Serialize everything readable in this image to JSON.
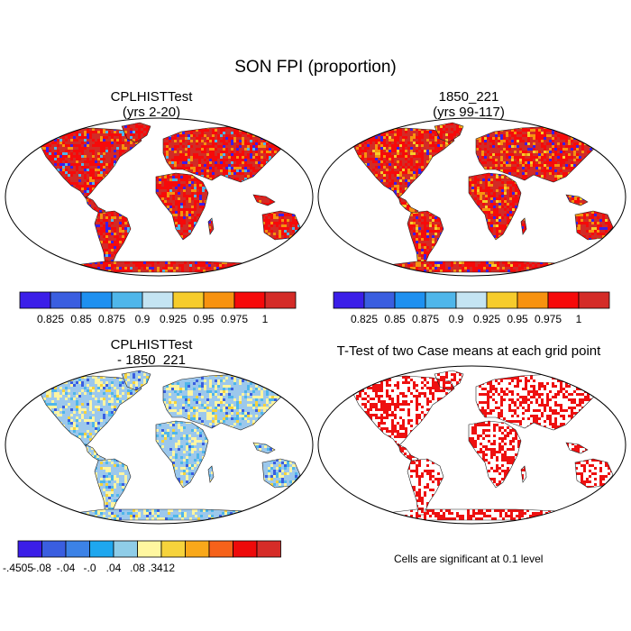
{
  "main_title": "SON FPI (proportion)",
  "panels": {
    "top_left": {
      "title_line1": "CPLHISTTest",
      "title_line2": "(yrs 2-20)"
    },
    "top_right": {
      "title_line1": "1850_221",
      "title_line2": "(yrs 99-117)"
    },
    "bottom_left": {
      "title_line1": "CPLHISTTest",
      "title_line2": "- 1850_221"
    },
    "bottom_right": {
      "title_line1": "T-Test of two Case means at each grid point"
    }
  },
  "labelbar_top": {
    "colors": [
      "#3b1ee8",
      "#3a5ee0",
      "#1e90f0",
      "#4fb6ea",
      "#c4e4f2",
      "#f6cc2c",
      "#f7920f",
      "#f60a0a",
      "#d42c28"
    ],
    "labels": [
      "0.825",
      "0.85",
      "0.875",
      "0.9",
      "0.925",
      "0.95",
      "0.975",
      "1"
    ]
  },
  "labelbar_diff": {
    "colors": [
      "#3b1ee8",
      "#3a5ee0",
      "#3c82e6",
      "#1ea7ef",
      "#8fcde8",
      "#fff7a0",
      "#f6d33c",
      "#f9a81a",
      "#f6621a",
      "#ee0a0a",
      "#d62c28"
    ],
    "labels": [
      "-.4505",
      "-.08",
      "-.04",
      "-.0",
      ".04",
      ".08",
      ".3412"
    ],
    "label_slots": [
      0,
      2,
      4,
      6,
      8,
      10,
      12
    ]
  },
  "ttest_note": "Cells are significant at 0.1 level",
  "map_colors": {
    "fpi_base": "#d22b26",
    "fpi_high": "#f60a0a",
    "fpi_mid": "#f7920f",
    "fpi_low": "#3b1ee8",
    "diff_base": "#9cc8ec",
    "diff_pos": "#fff5a0",
    "diff_neg": "#3a5ee0",
    "sig": "#ee1010"
  }
}
